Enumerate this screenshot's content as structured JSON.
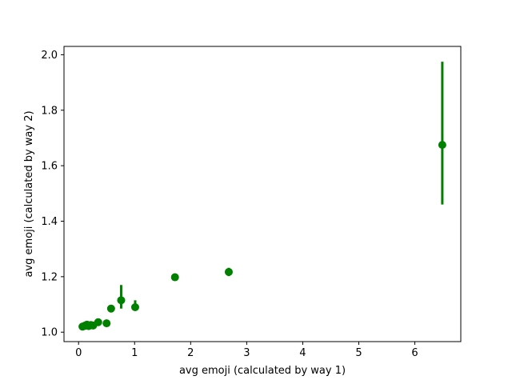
{
  "chart_data": {
    "type": "scatter",
    "title": "",
    "xlabel": "avg emoji (calculated by way 1)",
    "ylabel": "avg emoji (calculated by way 2)",
    "xlim": [
      -0.26,
      6.82
    ],
    "ylim": [
      0.966,
      2.03
    ],
    "xticks": [
      0,
      1,
      2,
      3,
      4,
      5,
      6
    ],
    "yticks": [
      1.0,
      1.2,
      1.4,
      1.6,
      1.8,
      2.0
    ],
    "xtick_labels": [
      "0",
      "1",
      "2",
      "3",
      "4",
      "5",
      "6"
    ],
    "ytick_labels": [
      "1.0",
      "1.2",
      "1.4",
      "1.6",
      "1.8",
      "2.0"
    ],
    "grid": false,
    "legend": "none",
    "color": "#008000",
    "points": [
      {
        "x": 0.07,
        "y": 1.02,
        "err_low": 1.015,
        "err_high": 1.025
      },
      {
        "x": 0.1,
        "y": 1.022,
        "err_low": 1.017,
        "err_high": 1.027
      },
      {
        "x": 0.12,
        "y": 1.024,
        "err_low": 1.018,
        "err_high": 1.03
      },
      {
        "x": 0.15,
        "y": 1.027,
        "err_low": 1.021,
        "err_high": 1.033
      },
      {
        "x": 0.18,
        "y": 1.022,
        "err_low": 1.016,
        "err_high": 1.028
      },
      {
        "x": 0.22,
        "y": 1.026,
        "err_low": 1.018,
        "err_high": 1.034
      },
      {
        "x": 0.26,
        "y": 1.024,
        "err_low": 1.017,
        "err_high": 1.031
      },
      {
        "x": 0.35,
        "y": 1.036,
        "err_low": 1.026,
        "err_high": 1.046
      },
      {
        "x": 0.5,
        "y": 1.032,
        "err_low": 1.022,
        "err_high": 1.042
      },
      {
        "x": 0.58,
        "y": 1.085,
        "err_low": 1.075,
        "err_high": 1.095
      },
      {
        "x": 0.76,
        "y": 1.115,
        "err_low": 1.085,
        "err_high": 1.17
      },
      {
        "x": 1.01,
        "y": 1.09,
        "err_low": 1.08,
        "err_high": 1.115
      },
      {
        "x": 1.72,
        "y": 1.198,
        "err_low": 1.188,
        "err_high": 1.208
      },
      {
        "x": 2.68,
        "y": 1.217,
        "err_low": 1.202,
        "err_high": 1.232
      },
      {
        "x": 6.49,
        "y": 1.675,
        "err_low": 1.46,
        "err_high": 1.975
      }
    ]
  }
}
